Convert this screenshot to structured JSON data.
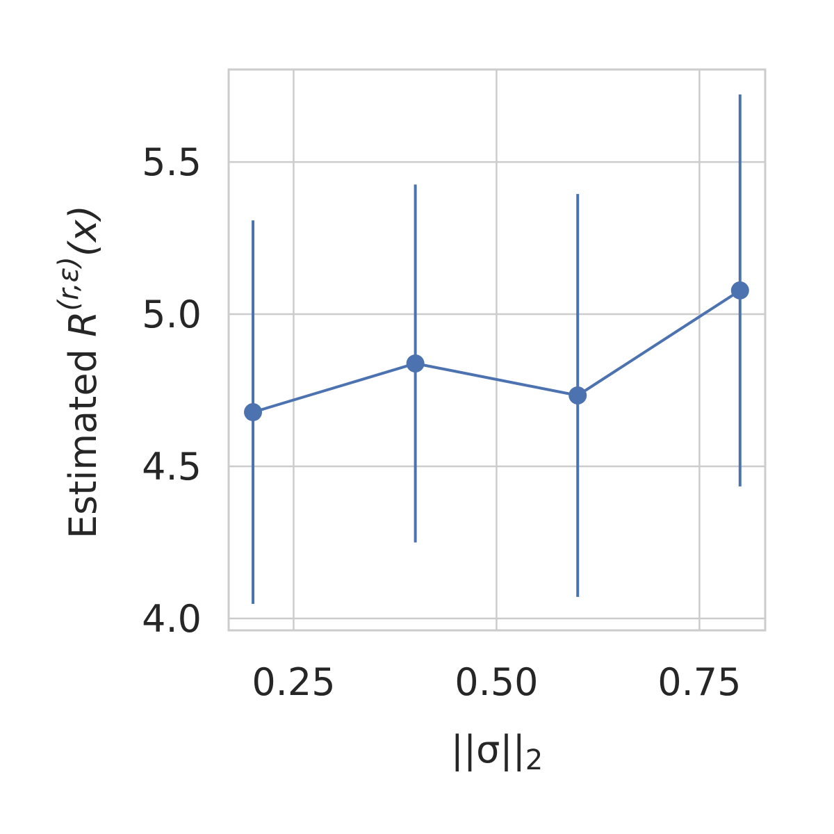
{
  "chart_data": {
    "type": "errorbar-line",
    "xlabel": [
      "||σ||",
      "2"
    ],
    "ylabel": [
      "Estimated ",
      "R",
      "(r,ε)",
      "(x)"
    ],
    "x": [
      0.2,
      0.4,
      0.6,
      0.8
    ],
    "series": [
      {
        "name": "Estimated R",
        "color": "#4c72b0",
        "values": [
          4.678,
          4.838,
          4.733,
          5.078
        ],
        "errors": [
          0.63,
          0.588,
          0.662,
          0.644
        ]
      }
    ],
    "xlim": [
      0.17,
      0.831
    ],
    "xticks": [
      0.25,
      {
        "value": 0.5,
        "label": "0.50"
      },
      0.75
    ],
    "ylim": [
      3.961,
      5.804
    ],
    "yticks": [
      {
        "value": 4,
        "label": "4.0"
      },
      4.5,
      {
        "value": 5,
        "label": "5.0"
      },
      5.5
    ],
    "grid": true
  }
}
